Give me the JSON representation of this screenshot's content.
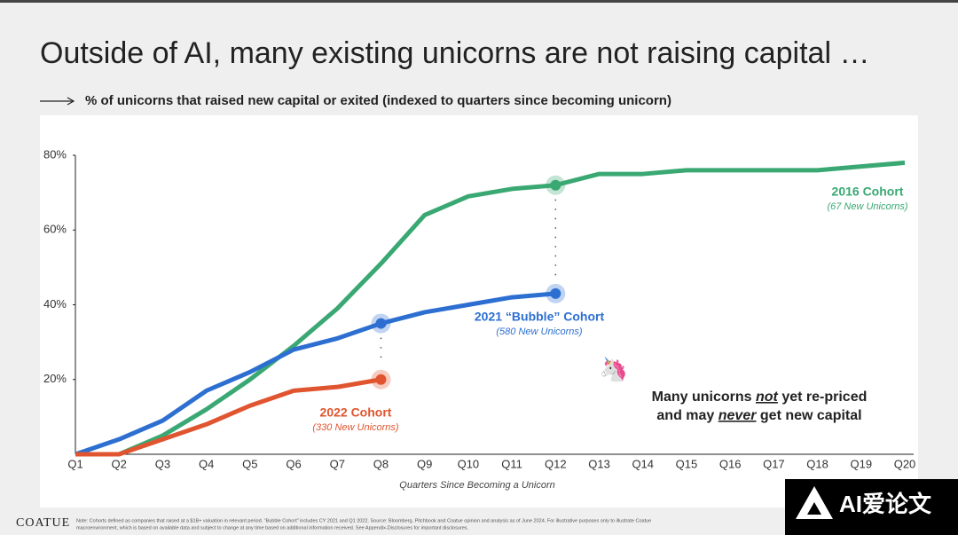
{
  "title": "Outside of AI, many existing unicorns are not raising capital …",
  "chart_data": {
    "type": "line",
    "subtitle": "% of unicorns that raised new capital or exited (indexed to quarters since becoming unicorn)",
    "x_label": "Quarters Since Becoming a Unicorn",
    "categories": [
      "Q1",
      "Q2",
      "Q3",
      "Q4",
      "Q5",
      "Q6",
      "Q7",
      "Q8",
      "Q9",
      "Q10",
      "Q11",
      "Q12",
      "Q13",
      "Q14",
      "Q15",
      "Q16",
      "Q17",
      "Q18",
      "Q19",
      "Q20"
    ],
    "ylim": [
      0,
      80
    ],
    "yticks": [
      {
        "value": 20,
        "label": "20%"
      },
      {
        "value": 40,
        "label": "40%"
      },
      {
        "value": 60,
        "label": "60%"
      },
      {
        "value": 80,
        "label": "80%"
      }
    ],
    "grid": false,
    "series": [
      {
        "name": "2016 Cohort",
        "sublabel": "(67 New Unicorns)",
        "color": "#3aa873",
        "highlight": [
          "Q12"
        ],
        "values": [
          0,
          0,
          5,
          12,
          20,
          29,
          39,
          51,
          64,
          69,
          71,
          72,
          75,
          75,
          76,
          76,
          76,
          76,
          77,
          78
        ]
      },
      {
        "name": "2021 “Bubble” Cohort",
        "sublabel": "(580 New Unicorns)",
        "color": "#2d6fd1",
        "highlight": [
          "Q8",
          "Q12"
        ],
        "values": [
          0,
          4,
          9,
          17,
          22,
          28,
          31,
          35,
          38,
          40,
          42,
          43,
          null,
          null,
          null,
          null,
          null,
          null,
          null,
          null
        ]
      },
      {
        "name": "2022 Cohort",
        "sublabel": "(330 New Unicorns)",
        "color": "#e0552f",
        "highlight": [
          "Q8"
        ],
        "values": [
          0,
          0,
          4,
          8,
          13,
          17,
          18,
          20,
          null,
          null,
          null,
          null,
          null,
          null,
          null,
          null,
          null,
          null,
          null,
          null
        ]
      }
    ],
    "callout": [
      {
        "pre": "Many unicorns ",
        "em": "not",
        "post": " yet re-priced"
      },
      {
        "pre": "and may ",
        "em": "never",
        "post": " get new capital"
      }
    ]
  },
  "footer": {
    "brand": "COATUE",
    "note": [
      "Note: Cohorts defined as companies that raised at a $1B+ valuation in relevant period. “Bubble Cohort” includes CY 2021 and Q1 2022. Source: Bloomberg, Pitchbook and Coatue opinion and analysis as of June 2024. For illustrative purposes only to illustrate Coatue",
      "macroenvironment, which is based on available data and subject to change at any time based on additional information received. See Appendix-Disclosures for important disclosures."
    ]
  },
  "watermark": "AI爱论文"
}
